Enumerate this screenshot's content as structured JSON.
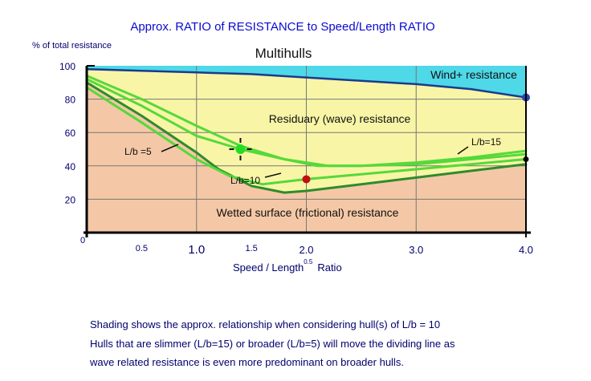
{
  "chart_data": {
    "type": "area",
    "title": "Approx. RATIO of RESISTANCE to Speed/Length RATIO",
    "subtitle": "Multihulls",
    "ylabel": "% of total resistance",
    "xlabel_main": "Speed / Length",
    "xlabel_superscript": "0.5",
    "xlabel_suffix": "Ratio",
    "xlim": [
      0,
      4.0
    ],
    "ylim": [
      0,
      100
    ],
    "x_ticks_major": [
      {
        "value": 1.0,
        "label": "1.0"
      },
      {
        "value": 2.0,
        "label": "2.0"
      },
      {
        "value": 3.0,
        "label": "3.0"
      },
      {
        "value": 4.0,
        "label": "4.0"
      }
    ],
    "x_ticks_minor": [
      {
        "value": 0.5,
        "label": "0.5"
      },
      {
        "value": 1.5,
        "label": "1.5"
      }
    ],
    "x_origin_label": "0",
    "y_ticks": [
      {
        "value": 20,
        "label": "20"
      },
      {
        "value": 40,
        "label": "40"
      },
      {
        "value": 60,
        "label": "60"
      },
      {
        "value": 80,
        "label": "80"
      },
      {
        "value": 100,
        "label": "100"
      }
    ],
    "regions": [
      {
        "label": "Wind+ resistance",
        "color": "#4ed8e8"
      },
      {
        "label": "Residuary (wave) resistance",
        "color": "#f8f5a6"
      },
      {
        "label": "Wetted surface (frictional) resistance",
        "color": "#f4c8a6"
      }
    ],
    "series": [
      {
        "name": "Wind+ resistance boundary",
        "color": "#1a3a8c",
        "points": [
          [
            0,
            98
          ],
          [
            0.5,
            97
          ],
          [
            1.0,
            96
          ],
          [
            1.5,
            95
          ],
          [
            2.0,
            93
          ],
          [
            2.5,
            91
          ],
          [
            3.0,
            89
          ],
          [
            3.5,
            86
          ],
          [
            4.0,
            81
          ]
        ]
      },
      {
        "name": "L/b=10",
        "color": "#2e8b2e",
        "points": [
          [
            0,
            90
          ],
          [
            0.5,
            70
          ],
          [
            1.0,
            48
          ],
          [
            1.2,
            38
          ],
          [
            1.5,
            28
          ],
          [
            1.8,
            24
          ],
          [
            2.0,
            25
          ],
          [
            2.5,
            29
          ],
          [
            3.0,
            33
          ],
          [
            3.5,
            37
          ],
          [
            4.0,
            41
          ]
        ]
      },
      {
        "name": "L/b =5",
        "label": "L/b =5",
        "color": "#55d93a",
        "points": [
          [
            0,
            94
          ],
          [
            0.5,
            80
          ],
          [
            1.0,
            64
          ],
          [
            1.4,
            52
          ],
          [
            1.8,
            44
          ],
          [
            2.1,
            40
          ],
          [
            2.5,
            40
          ],
          [
            3.0,
            42
          ],
          [
            3.5,
            45
          ],
          [
            4.0,
            49
          ]
        ]
      },
      {
        "name": "L/b=10",
        "label": "L/b=10",
        "color": "#55d93a",
        "points": [
          [
            0,
            87
          ],
          [
            0.5,
            66
          ],
          [
            1.0,
            44
          ],
          [
            1.3,
            34
          ],
          [
            1.6,
            29
          ],
          [
            2.0,
            32
          ],
          [
            2.5,
            35
          ],
          [
            3.0,
            38
          ],
          [
            3.5,
            41
          ],
          [
            4.0,
            44
          ]
        ]
      },
      {
        "name": "L/b=15",
        "label": "L/b=15",
        "color": "#55d93a",
        "points": [
          [
            0,
            92
          ],
          [
            0.5,
            76
          ],
          [
            1.0,
            58
          ],
          [
            1.4,
            50
          ],
          [
            1.8,
            44
          ],
          [
            2.2,
            40
          ],
          [
            2.5,
            40
          ],
          [
            3.0,
            41
          ],
          [
            3.5,
            44
          ],
          [
            4.0,
            47
          ]
        ]
      }
    ],
    "markers": [
      {
        "x": 4.0,
        "y": 81,
        "color": "#2844b0"
      },
      {
        "x": 2.0,
        "y": 32,
        "color": "#c01010"
      },
      {
        "x": 1.4,
        "y": 50,
        "color": "#22dd22"
      },
      {
        "x": 4.0,
        "y": 44,
        "color": "#111111"
      }
    ],
    "grid": true
  },
  "captions": [
    "Shading shows the approx. relationship when considering hull(s) of L/b = 10",
    "Hulls that are slimmer (L/b=15) or broader (L/b=5)  will move the dividing line as",
    "wave related resistance is even more predominant on broader hulls."
  ]
}
